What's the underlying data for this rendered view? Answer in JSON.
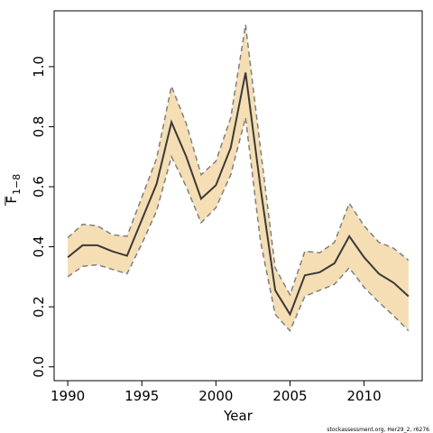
{
  "chart_data": {
    "type": "line",
    "xlabel": "Year",
    "ylabel": "F",
    "ylabel_subscript": "1−8",
    "footer": "stockassessment.org, Her29_2, r6276",
    "x": [
      1990,
      1991,
      1992,
      1993,
      1994,
      1995,
      1996,
      1997,
      1998,
      1999,
      2000,
      2001,
      2002,
      2003,
      2004,
      2005,
      2006,
      2007,
      2008,
      2009,
      2010,
      2011,
      2012,
      2013
    ],
    "series": [
      {
        "name": "estimate",
        "color": "#3a3a3a",
        "values": [
          0.365,
          0.405,
          0.405,
          0.385,
          0.37,
          0.49,
          0.61,
          0.815,
          0.7,
          0.56,
          0.605,
          0.73,
          0.98,
          0.6,
          0.255,
          0.175,
          0.305,
          0.315,
          0.345,
          0.435,
          0.365,
          0.31,
          0.28,
          0.235
        ]
      },
      {
        "name": "lower",
        "color": "#7f7f7f",
        "values": [
          0.3,
          0.335,
          0.34,
          0.325,
          0.31,
          0.41,
          0.52,
          0.7,
          0.6,
          0.48,
          0.53,
          0.64,
          0.83,
          0.42,
          0.175,
          0.12,
          0.235,
          0.255,
          0.275,
          0.33,
          0.265,
          0.215,
          0.17,
          0.12
        ]
      },
      {
        "name": "upper",
        "color": "#7f7f7f",
        "values": [
          0.43,
          0.475,
          0.47,
          0.44,
          0.435,
          0.565,
          0.695,
          0.935,
          0.81,
          0.64,
          0.685,
          0.83,
          1.14,
          0.73,
          0.33,
          0.24,
          0.385,
          0.38,
          0.415,
          0.545,
          0.47,
          0.415,
          0.395,
          0.355
        ]
      }
    ],
    "band_color": "#f5deb3",
    "xlim": [
      1989.08,
      2013.92
    ],
    "xticks": [
      1990,
      1995,
      2000,
      2005,
      2010
    ],
    "ylim": [
      -0.046,
      1.186
    ],
    "yticks": [
      {
        "value": 0,
        "label": "0.0"
      },
      0.2,
      0.4,
      0.6,
      0.8,
      {
        "value": 1,
        "label": "1.0"
      }
    ]
  }
}
